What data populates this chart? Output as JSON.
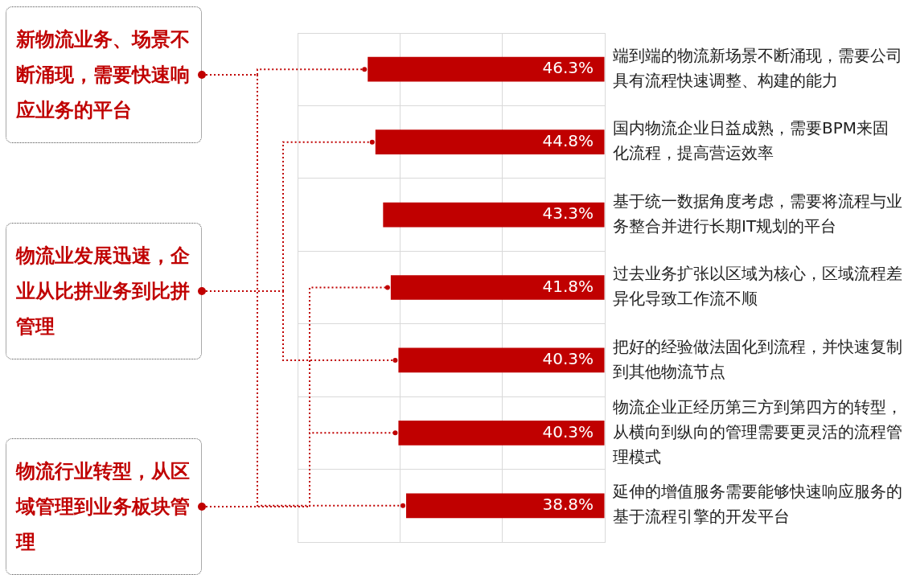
{
  "chart_data": {
    "type": "bar",
    "orientation": "horizontal",
    "categories": [
      "端到端的物流新场景不断涌现，需要公司具有流程快速调整、构建的能力",
      "国内物流企业日益成熟，需要BPM来固化流程，提高营运效率",
      "基于统一数据角度考虑，需要将流程与业务整合并进行长期IT规划的平台",
      "过去业务扩张以区域为核心，区域流程差异化导致工作流不顺",
      "把好的经验做法固化到流程，并快速复制到其他物流节点",
      "物流企业正经历第三方到第四方的转型，从横向到纵向的管理需要更灵活的流程管理模式",
      "延伸的增值服务需要能够快速响应服务的基于流程引擎的开发平台"
    ],
    "values": [
      46.3,
      44.8,
      43.3,
      41.8,
      40.3,
      40.3,
      38.8
    ],
    "value_labels": [
      "46.3%",
      "44.8%",
      "43.3%",
      "41.8%",
      "40.3%",
      "40.3%",
      "38.8%"
    ],
    "color": "#c00000",
    "xlim": [
      60,
      0
    ],
    "xticks": [
      {
        "value": 0,
        "label": null
      },
      {
        "value": 20,
        "label": null
      },
      {
        "value": 40,
        "label": null
      },
      {
        "value": 60,
        "label": null
      }
    ],
    "tick_labels": "y",
    "grid": true,
    "legend": false,
    "annotations": [
      "新物流业务、场景不断涌现，需要快速响应业务的平台",
      "物流业发展迅速，企业从比拼业务到比拼管理",
      "物流行业转型，从区域管理到业务板块管理"
    ]
  }
}
